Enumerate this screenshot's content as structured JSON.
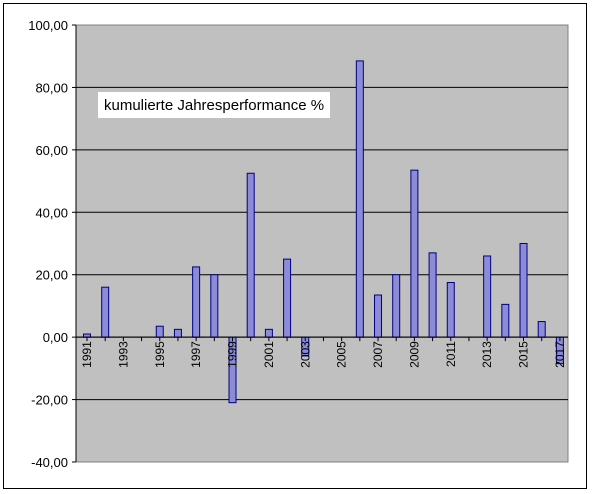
{
  "chart_data": {
    "type": "bar",
    "title": "kumulierte Jahresperformance %",
    "xlabel": "",
    "ylabel": "",
    "ylim": [
      -40,
      100
    ],
    "y_ticks": [
      "100,00",
      "80,00",
      "60,00",
      "40,00",
      "20,00",
      "0,00",
      "-20,00",
      "-40,00"
    ],
    "y_tick_values": [
      100,
      80,
      60,
      40,
      20,
      0,
      -20,
      -40
    ],
    "grid": true,
    "legend": "none",
    "plot_background": "#c0c0c0",
    "bar_color": "#8b8bd8",
    "bar_edge_color": "#000080",
    "categories": [
      "1991",
      "1992",
      "1993",
      "1994",
      "1995",
      "1996",
      "1997",
      "1998",
      "1999",
      "2000",
      "2001",
      "2002",
      "2003",
      "2004",
      "2005",
      "2006",
      "2007",
      "2008",
      "2009",
      "2010",
      "2011",
      "2012",
      "2013",
      "2014",
      "2015",
      "2016",
      "2017"
    ],
    "x_tick_labels": [
      "1991",
      "1993",
      "1995",
      "1997",
      "1999",
      "2001",
      "2003",
      "2005",
      "2007",
      "2009",
      "2011",
      "2013",
      "2015",
      "2017"
    ],
    "values": [
      1.0,
      16.0,
      0,
      0,
      3.5,
      2.5,
      22.5,
      20.0,
      -21.0,
      52.5,
      2.5,
      25.0,
      -6.0,
      0,
      0,
      88.5,
      13.5,
      20.0,
      53.5,
      27.0,
      17.5,
      0,
      26.0,
      10.5,
      30.0,
      5.0,
      -8.5
    ]
  }
}
